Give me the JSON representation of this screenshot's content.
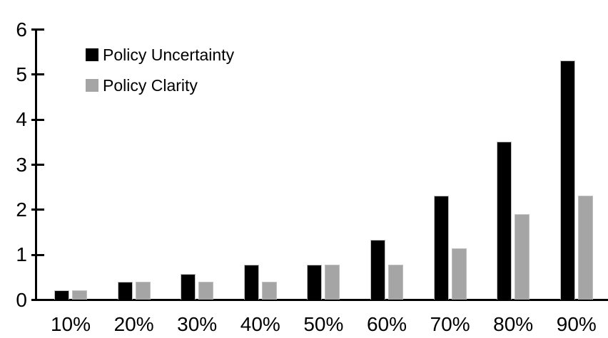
{
  "chart_data": {
    "type": "bar",
    "title": "",
    "xlabel": "",
    "ylabel": "",
    "categories": [
      "10%",
      "20%",
      "30%",
      "40%",
      "50%",
      "60%",
      "70%",
      "80%",
      "90%"
    ],
    "series": [
      {
        "name": "Policy Uncertainty",
        "color": "#000000",
        "values": [
          0.2,
          0.4,
          0.57,
          0.77,
          0.78,
          1.33,
          2.3,
          3.5,
          5.3
        ]
      },
      {
        "name": "Policy Clarity",
        "color": "#a5a5a5",
        "values": [
          0.2,
          0.4,
          0.4,
          0.4,
          0.77,
          0.77,
          1.13,
          1.9,
          2.3
        ]
      }
    ],
    "ylim": [
      0,
      6
    ],
    "yticks": [
      0,
      1,
      2,
      3,
      4,
      5,
      6
    ],
    "grid": false,
    "legend_position": "top-left",
    "axis_color": "#000000",
    "background_color": "#ffffff"
  }
}
